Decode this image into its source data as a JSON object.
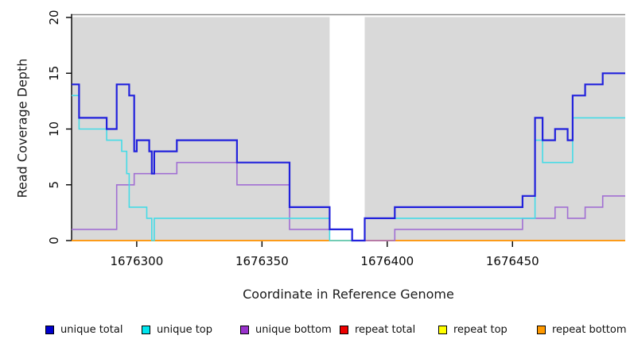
{
  "chart_data": {
    "type": "line",
    "subtype": "step-after",
    "title": "",
    "xlabel": "Coordinate in Reference Genome",
    "ylabel": "Read Coverage Depth",
    "xlim": [
      1676274,
      1676495
    ],
    "ylim": [
      0,
      20
    ],
    "x_ticks": [
      1676300,
      1676350,
      1676400,
      1676450
    ],
    "y_ticks": [
      0,
      5,
      10,
      15,
      20
    ],
    "grid": false,
    "plot_background": "#d9d9d9",
    "top_border_color": "#8a8a8a",
    "gap_region": {
      "x_start": 1676377,
      "x_end": 1676391,
      "color": "#ffffff"
    },
    "legend_position": "bottom",
    "draw_order": [
      3,
      4,
      5,
      2,
      1,
      0
    ],
    "series": [
      {
        "name": "unique total",
        "line_color": "#2121dc",
        "swatch_color": "#0000cd",
        "points": [
          [
            1676274,
            14
          ],
          [
            1676277,
            11
          ],
          [
            1676288,
            10
          ],
          [
            1676292,
            14
          ],
          [
            1676297,
            13
          ],
          [
            1676299,
            8
          ],
          [
            1676300,
            9
          ],
          [
            1676305,
            8
          ],
          [
            1676306,
            6
          ],
          [
            1676307,
            8
          ],
          [
            1676316,
            9
          ],
          [
            1676340,
            7
          ],
          [
            1676361,
            3
          ],
          [
            1676377,
            1
          ],
          [
            1676386,
            0
          ],
          [
            1676391,
            2
          ],
          [
            1676403,
            3
          ],
          [
            1676454,
            4
          ],
          [
            1676459,
            11
          ],
          [
            1676462,
            9
          ],
          [
            1676467,
            10
          ],
          [
            1676472,
            9
          ],
          [
            1676474,
            13
          ],
          [
            1676479,
            14
          ],
          [
            1676486,
            15
          ]
        ]
      },
      {
        "name": "unique top",
        "line_color": "#45dbe6",
        "swatch_color": "#00e5ee",
        "points": [
          [
            1676274,
            13
          ],
          [
            1676277,
            10
          ],
          [
            1676288,
            9
          ],
          [
            1676294,
            8
          ],
          [
            1676296,
            6
          ],
          [
            1676297,
            3
          ],
          [
            1676304,
            2
          ],
          [
            1676306,
            0
          ],
          [
            1676307,
            2
          ],
          [
            1676377,
            0
          ],
          [
            1676391,
            2
          ],
          [
            1676459,
            9
          ],
          [
            1676462,
            7
          ],
          [
            1676474,
            11
          ]
        ]
      },
      {
        "name": "unique bottom",
        "line_color": "#a16fd3",
        "swatch_color": "#9932cc",
        "points": [
          [
            1676274,
            1
          ],
          [
            1676292,
            5
          ],
          [
            1676299,
            6
          ],
          [
            1676316,
            7
          ],
          [
            1676340,
            5
          ],
          [
            1676361,
            1
          ],
          [
            1676386,
            0
          ],
          [
            1676403,
            1
          ],
          [
            1676454,
            2
          ],
          [
            1676467,
            3
          ],
          [
            1676472,
            2
          ],
          [
            1676479,
            3
          ],
          [
            1676486,
            4
          ]
        ]
      },
      {
        "name": "repeat total",
        "line_color": "#dd2222",
        "swatch_color": "#ee0000",
        "points": [
          [
            1676274,
            0
          ]
        ]
      },
      {
        "name": "repeat top",
        "line_color": "#eded00",
        "swatch_color": "#ffff00",
        "points": [
          [
            1676274,
            0
          ]
        ]
      },
      {
        "name": "repeat bottom",
        "line_color": "#ff9714",
        "swatch_color": "#ff9900",
        "points": [
          [
            1676274,
            0
          ]
        ]
      }
    ],
    "legend": [
      {
        "label": "unique total"
      },
      {
        "label": "unique top"
      },
      {
        "label": "unique bottom"
      },
      {
        "label": "repeat total"
      },
      {
        "label": "repeat top"
      },
      {
        "label": "repeat bottom"
      }
    ]
  }
}
